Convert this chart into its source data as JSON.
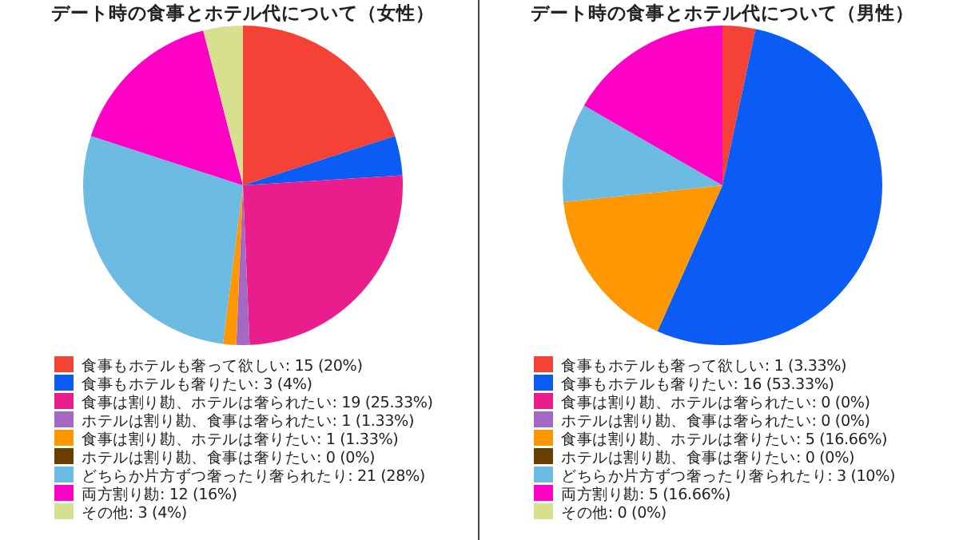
{
  "chart_data": [
    {
      "type": "pie",
      "title": "デート時の食事とホテル代について（女性）",
      "legend": "bottom",
      "categories": [
        "食事もホテルも奢って欲しい",
        "食事もホテルも奢りたい",
        "食事は割り勘、ホテルは奢られたい",
        "ホテルは割り勘、食事は奢られたい",
        "食事は割り勘、ホテルは奢りたい",
        "ホテルは割り勘、食事は奢りたい",
        "どちらか片方ずつ奢ったり奢られたり",
        "両方割り勘",
        "その他"
      ],
      "values": [
        15,
        3,
        19,
        1,
        1,
        0,
        21,
        12,
        3
      ],
      "value_labels": [
        "15 (20%)",
        "3 (4%)",
        "19 (25.33%)",
        "1 (1.33%)",
        "1 (1.33%)",
        "0 (0%)",
        "21 (28%)",
        "12 (16%)",
        "3 (4%)"
      ],
      "colors": [
        "#f44336",
        "#0a5cf5",
        "#e91e8c",
        "#a569c4",
        "#ff9800",
        "#6b3f00",
        "#6cbbe3",
        "#ff00c4",
        "#d6e08e"
      ]
    },
    {
      "type": "pie",
      "title": "デート時の食事とホテル代について（男性）",
      "legend": "bottom",
      "categories": [
        "食事もホテルも奢って欲しい",
        "食事もホテルも奢りたい",
        "食事は割り勘、ホテルは奢られたい",
        "ホテルは割り勘、食事は奢られたい",
        "食事は割り勘、ホテルは奢りたい",
        "ホテルは割り勘、食事は奢りたい",
        "どちらか片方ずつ奢ったり奢られたり",
        "両方割り勘",
        "その他"
      ],
      "values": [
        1,
        16,
        0,
        0,
        5,
        0,
        3,
        5,
        0
      ],
      "value_labels": [
        "1 (3.33%)",
        "16 (53.33%)",
        "0 (0%)",
        "0 (0%)",
        "5 (16.66%)",
        "0 (0%)",
        "3 (10%)",
        "5 (16.66%)",
        "0 (0%)"
      ],
      "colors": [
        "#f44336",
        "#0a5cf5",
        "#e91e8c",
        "#a569c4",
        "#ff9800",
        "#6b3f00",
        "#6cbbe3",
        "#ff00c4",
        "#d6e08e"
      ]
    }
  ]
}
